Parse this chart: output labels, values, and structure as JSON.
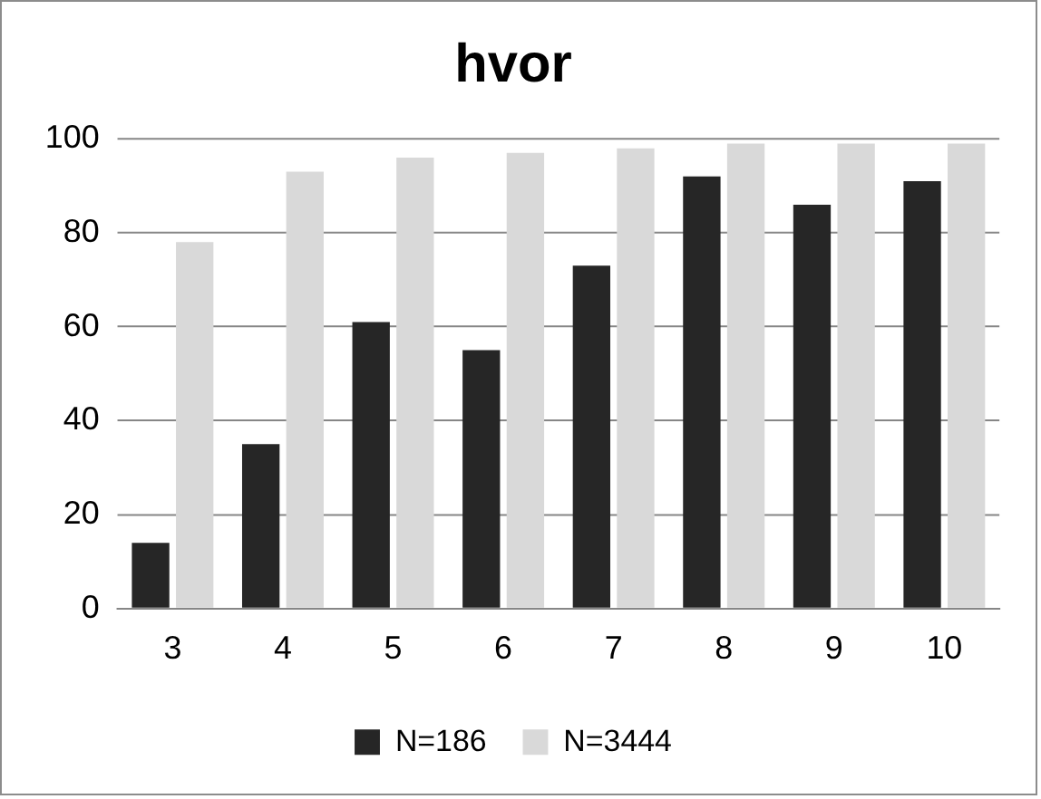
{
  "chart_data": {
    "type": "bar",
    "title": "hvor",
    "categories": [
      "3",
      "4",
      "5",
      "6",
      "7",
      "8",
      "9",
      "10"
    ],
    "series": [
      {
        "name": "N=186",
        "color": "#262626",
        "values": [
          14,
          35,
          61,
          55,
          73,
          92,
          86,
          91
        ]
      },
      {
        "name": "N=3444",
        "color": "#d9d9d9",
        "values": [
          78,
          93,
          96,
          97,
          98,
          99,
          99,
          99
        ]
      }
    ],
    "ylim": [
      0,
      100
    ],
    "yticks": [
      0,
      20,
      40,
      60,
      80,
      100
    ],
    "grid": "y",
    "legend": "bottom"
  }
}
